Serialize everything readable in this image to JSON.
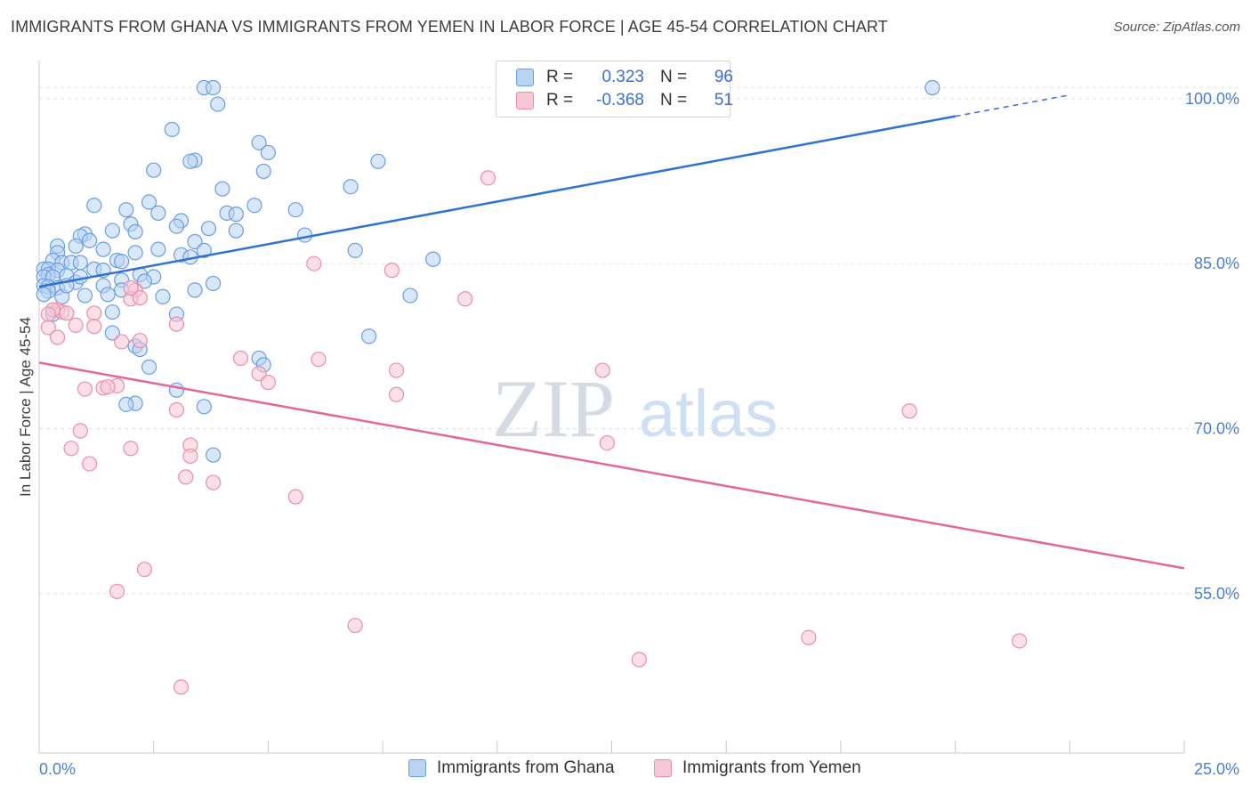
{
  "title": "IMMIGRANTS FROM GHANA VS IMMIGRANTS FROM YEMEN IN LABOR FORCE | AGE 45-54 CORRELATION CHART",
  "source": "Source: ZipAtlas.com",
  "watermark": {
    "zip": "ZIP",
    "atlas": "atlas"
  },
  "colors": {
    "ghana_fill": "#b9d3f5",
    "ghana_stroke": "#6a9ee0",
    "ghana_line": "#2f72cf",
    "yemen_fill": "#f8c7d6",
    "yemen_stroke": "#e88fab",
    "yemen_line": "#e0689a",
    "grid": "#e3e3e3",
    "tick_text": "#4a7fd0"
  },
  "legend": {
    "rows": [
      {
        "r_label": "R =",
        "r_value": "0.323",
        "n_label": "N =",
        "n_value": "96"
      },
      {
        "r_label": "R =",
        "r_value": "-0.368",
        "n_label": "N =",
        "n_value": "51"
      }
    ]
  },
  "bottom_legend": {
    "ghana": "Immigrants from Ghana",
    "yemen": "Immigrants from Yemen"
  },
  "chart_data": {
    "type": "scatter",
    "title": "IMMIGRANTS FROM GHANA VS IMMIGRANTS FROM YEMEN IN LABOR FORCE | AGE 45-54 CORRELATION CHART",
    "xlabel": "",
    "ylabel": "In Labor Force | Age 45-54",
    "xlim": [
      0,
      25
    ],
    "ylim": [
      40.5,
      102.5
    ],
    "x_tick_labels": [
      "0.0%",
      "25.0%"
    ],
    "y_ticks": [
      55,
      70,
      85,
      100
    ],
    "y_tick_labels": [
      "55.0%",
      "70.0%",
      "85.0%",
      "100.0%"
    ],
    "grid": true,
    "series": [
      {
        "name": "Immigrants from Ghana",
        "trend": {
          "x0": 0,
          "y0": 82.9,
          "x1": 20,
          "y1": 98.4,
          "dash_to_x": 22.5
        },
        "points": [
          [
            3.6,
            101.0
          ],
          [
            3.8,
            101.0
          ],
          [
            19.5,
            101.0
          ],
          [
            3.9,
            99.5
          ],
          [
            2.9,
            97.2
          ],
          [
            4.8,
            96.0
          ],
          [
            5.0,
            95.1
          ],
          [
            3.4,
            94.4
          ],
          [
            3.3,
            94.3
          ],
          [
            7.4,
            94.3
          ],
          [
            2.5,
            93.5
          ],
          [
            4.9,
            93.4
          ],
          [
            6.8,
            92.0
          ],
          [
            4.0,
            91.8
          ],
          [
            2.4,
            90.6
          ],
          [
            1.2,
            90.3
          ],
          [
            4.7,
            90.3
          ],
          [
            5.6,
            89.9
          ],
          [
            1.9,
            89.9
          ],
          [
            2.6,
            89.6
          ],
          [
            4.1,
            89.6
          ],
          [
            4.3,
            89.5
          ],
          [
            3.1,
            88.9
          ],
          [
            2.0,
            88.6
          ],
          [
            3.0,
            88.4
          ],
          [
            3.7,
            88.2
          ],
          [
            1.6,
            88.0
          ],
          [
            4.3,
            88.0
          ],
          [
            2.1,
            87.9
          ],
          [
            1.0,
            87.7
          ],
          [
            5.8,
            87.6
          ],
          [
            0.9,
            87.5
          ],
          [
            1.1,
            87.1
          ],
          [
            3.4,
            87.0
          ],
          [
            0.4,
            86.6
          ],
          [
            0.8,
            86.6
          ],
          [
            1.4,
            86.3
          ],
          [
            2.6,
            86.3
          ],
          [
            6.9,
            86.2
          ],
          [
            2.1,
            86.0
          ],
          [
            3.6,
            86.2
          ],
          [
            0.4,
            86.0
          ],
          [
            3.1,
            85.8
          ],
          [
            3.3,
            85.6
          ],
          [
            8.6,
            85.4
          ],
          [
            0.3,
            85.3
          ],
          [
            1.7,
            85.3
          ],
          [
            1.8,
            85.2
          ],
          [
            0.5,
            85.1
          ],
          [
            0.7,
            85.1
          ],
          [
            0.9,
            85.1
          ],
          [
            1.2,
            84.5
          ],
          [
            0.1,
            84.5
          ],
          [
            0.2,
            84.5
          ],
          [
            0.4,
            84.4
          ],
          [
            1.4,
            84.4
          ],
          [
            2.2,
            84.0
          ],
          [
            0.2,
            84.0
          ],
          [
            0.1,
            83.8
          ],
          [
            0.3,
            83.8
          ],
          [
            0.6,
            83.9
          ],
          [
            2.5,
            83.8
          ],
          [
            1.8,
            83.5
          ],
          [
            2.3,
            83.4
          ],
          [
            3.8,
            83.2
          ],
          [
            0.8,
            83.3
          ],
          [
            0.1,
            83.0
          ],
          [
            0.2,
            82.9
          ],
          [
            0.4,
            82.8
          ],
          [
            1.4,
            83.0
          ],
          [
            1.8,
            82.6
          ],
          [
            3.4,
            82.6
          ],
          [
            0.2,
            82.5
          ],
          [
            0.1,
            82.2
          ],
          [
            1.0,
            82.1
          ],
          [
            8.1,
            82.1
          ],
          [
            0.5,
            82.0
          ],
          [
            1.6,
            80.6
          ],
          [
            0.3,
            80.4
          ],
          [
            3.0,
            80.4
          ],
          [
            1.6,
            78.7
          ],
          [
            7.2,
            78.4
          ],
          [
            2.1,
            77.5
          ],
          [
            2.2,
            77.2
          ],
          [
            4.8,
            76.4
          ],
          [
            4.9,
            75.8
          ],
          [
            2.4,
            75.6
          ],
          [
            3.0,
            73.5
          ],
          [
            2.1,
            72.3
          ],
          [
            1.9,
            72.2
          ],
          [
            3.6,
            72.0
          ],
          [
            3.8,
            67.6
          ],
          [
            0.9,
            83.8
          ],
          [
            1.5,
            82.2
          ],
          [
            2.7,
            82.0
          ],
          [
            0.6,
            83.0
          ]
        ]
      },
      {
        "name": "Immigrants from Yemen",
        "trend": {
          "x0": 0,
          "y0": 76.0,
          "x1": 25,
          "y1": 57.3
        },
        "points": [
          [
            9.8,
            92.8
          ],
          [
            6.0,
            85.0
          ],
          [
            7.7,
            84.4
          ],
          [
            9.3,
            81.8
          ],
          [
            2.1,
            82.6
          ],
          [
            2.0,
            81.8
          ],
          [
            2.2,
            81.9
          ],
          [
            0.4,
            80.8
          ],
          [
            0.5,
            80.6
          ],
          [
            0.3,
            80.8
          ],
          [
            0.6,
            80.5
          ],
          [
            1.2,
            80.5
          ],
          [
            0.8,
            79.4
          ],
          [
            1.2,
            79.3
          ],
          [
            3.0,
            79.5
          ],
          [
            0.2,
            79.2
          ],
          [
            0.4,
            78.3
          ],
          [
            1.8,
            77.9
          ],
          [
            2.2,
            78.0
          ],
          [
            6.1,
            76.3
          ],
          [
            4.4,
            76.4
          ],
          [
            4.8,
            75.0
          ],
          [
            7.8,
            75.3
          ],
          [
            12.3,
            75.3
          ],
          [
            5.0,
            74.2
          ],
          [
            1.7,
            73.9
          ],
          [
            1.4,
            73.7
          ],
          [
            1.5,
            73.8
          ],
          [
            1.0,
            73.6
          ],
          [
            7.8,
            73.1
          ],
          [
            0.9,
            69.8
          ],
          [
            3.0,
            71.7
          ],
          [
            19.0,
            71.6
          ],
          [
            2.0,
            68.2
          ],
          [
            3.3,
            68.5
          ],
          [
            12.4,
            68.7
          ],
          [
            0.7,
            68.2
          ],
          [
            3.3,
            67.5
          ],
          [
            1.1,
            66.8
          ],
          [
            3.2,
            65.6
          ],
          [
            3.8,
            65.1
          ],
          [
            5.6,
            63.8
          ],
          [
            2.3,
            57.2
          ],
          [
            1.7,
            55.2
          ],
          [
            6.9,
            52.1
          ],
          [
            16.8,
            51.0
          ],
          [
            21.4,
            50.7
          ],
          [
            13.1,
            49.0
          ],
          [
            3.1,
            46.5
          ],
          [
            0.2,
            80.4
          ],
          [
            2.0,
            82.8
          ]
        ]
      }
    ]
  }
}
